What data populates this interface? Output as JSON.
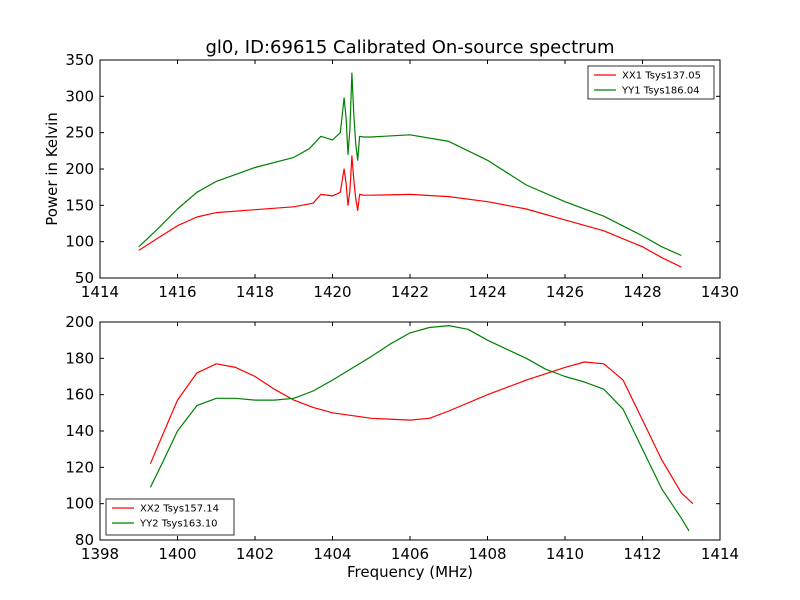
{
  "chart_data": [
    {
      "type": "line",
      "title": "gl0, ID:69615 Calibrated On-source spectrum",
      "xlabel": "",
      "ylabel": "Power in Kelvin",
      "xlim": [
        1414,
        1430
      ],
      "ylim": [
        50,
        350
      ],
      "xticks": [
        1414,
        1416,
        1418,
        1420,
        1422,
        1424,
        1426,
        1428,
        1430
      ],
      "yticks": [
        50,
        100,
        150,
        200,
        250,
        300,
        350
      ],
      "legend": "top-right",
      "series": [
        {
          "name": "XX1 Tsys137.05",
          "color": "#ff0000",
          "x": [
            1415,
            1415.5,
            1416,
            1416.5,
            1417,
            1418,
            1419,
            1419.5,
            1419.7,
            1420,
            1420.2,
            1420.3,
            1420.35,
            1420.4,
            1420.45,
            1420.5,
            1420.55,
            1420.6,
            1420.65,
            1420.7,
            1420.8,
            1421,
            1422,
            1423,
            1424,
            1425,
            1426,
            1427,
            1428,
            1428.5,
            1429
          ],
          "y": [
            88,
            105,
            122,
            134,
            140,
            144,
            148,
            153,
            165,
            163,
            168,
            200,
            180,
            150,
            170,
            218,
            185,
            160,
            143,
            165,
            164,
            164,
            165,
            162,
            155,
            145,
            130,
            115,
            93,
            78,
            65
          ]
        },
        {
          "name": "YY1 Tsys186.04",
          "color": "#008000",
          "x": [
            1415,
            1415.5,
            1416,
            1416.5,
            1417,
            1418,
            1419,
            1419.4,
            1419.7,
            1420,
            1420.2,
            1420.3,
            1420.35,
            1420.4,
            1420.45,
            1420.5,
            1420.55,
            1420.6,
            1420.65,
            1420.7,
            1420.8,
            1421,
            1422,
            1423,
            1424,
            1425,
            1426,
            1427,
            1428,
            1428.5,
            1429
          ],
          "y": [
            93,
            118,
            145,
            168,
            183,
            202,
            216,
            228,
            245,
            240,
            250,
            298,
            270,
            220,
            255,
            332,
            275,
            235,
            212,
            245,
            244,
            244,
            247,
            238,
            212,
            178,
            155,
            135,
            108,
            93,
            81
          ]
        }
      ]
    },
    {
      "type": "line",
      "title": "",
      "xlabel": "Frequency (MHz)",
      "ylabel": "",
      "xlim": [
        1398,
        1414
      ],
      "ylim": [
        80,
        200
      ],
      "xticks": [
        1398,
        1400,
        1402,
        1404,
        1406,
        1408,
        1410,
        1412,
        1414
      ],
      "yticks": [
        80,
        100,
        120,
        140,
        160,
        180,
        200
      ],
      "legend": "bottom-left",
      "series": [
        {
          "name": "XX2 Tsys157.14",
          "color": "#ff0000",
          "x": [
            1399.3,
            1399.6,
            1400,
            1400.5,
            1401,
            1401.5,
            1402,
            1402.5,
            1403,
            1403.5,
            1404,
            1405,
            1406,
            1406.5,
            1407,
            1408,
            1409,
            1410,
            1410.5,
            1411,
            1411.5,
            1412,
            1412.5,
            1413,
            1413.3
          ],
          "y": [
            122,
            137,
            157,
            172,
            177,
            175,
            170,
            163,
            157,
            153,
            150,
            147,
            146,
            147,
            151,
            160,
            168,
            175,
            178,
            177,
            168,
            146,
            124,
            106,
            100
          ]
        },
        {
          "name": "YY2 Tsys163.10",
          "color": "#008000",
          "x": [
            1399.3,
            1399.6,
            1400,
            1400.5,
            1401,
            1401.5,
            1402,
            1402.5,
            1403,
            1403.5,
            1404,
            1405,
            1405.5,
            1406,
            1406.5,
            1407,
            1407.5,
            1408,
            1408.5,
            1409,
            1409.5,
            1410,
            1410.5,
            1411,
            1411.5,
            1412,
            1412.5,
            1413,
            1413.2
          ],
          "y": [
            109,
            122,
            140,
            154,
            158,
            158,
            157,
            157,
            158,
            162,
            168,
            181,
            188,
            194,
            197,
            198,
            196,
            190,
            185,
            180,
            174,
            170,
            167,
            163,
            152,
            130,
            108,
            92,
            85
          ]
        }
      ]
    }
  ]
}
